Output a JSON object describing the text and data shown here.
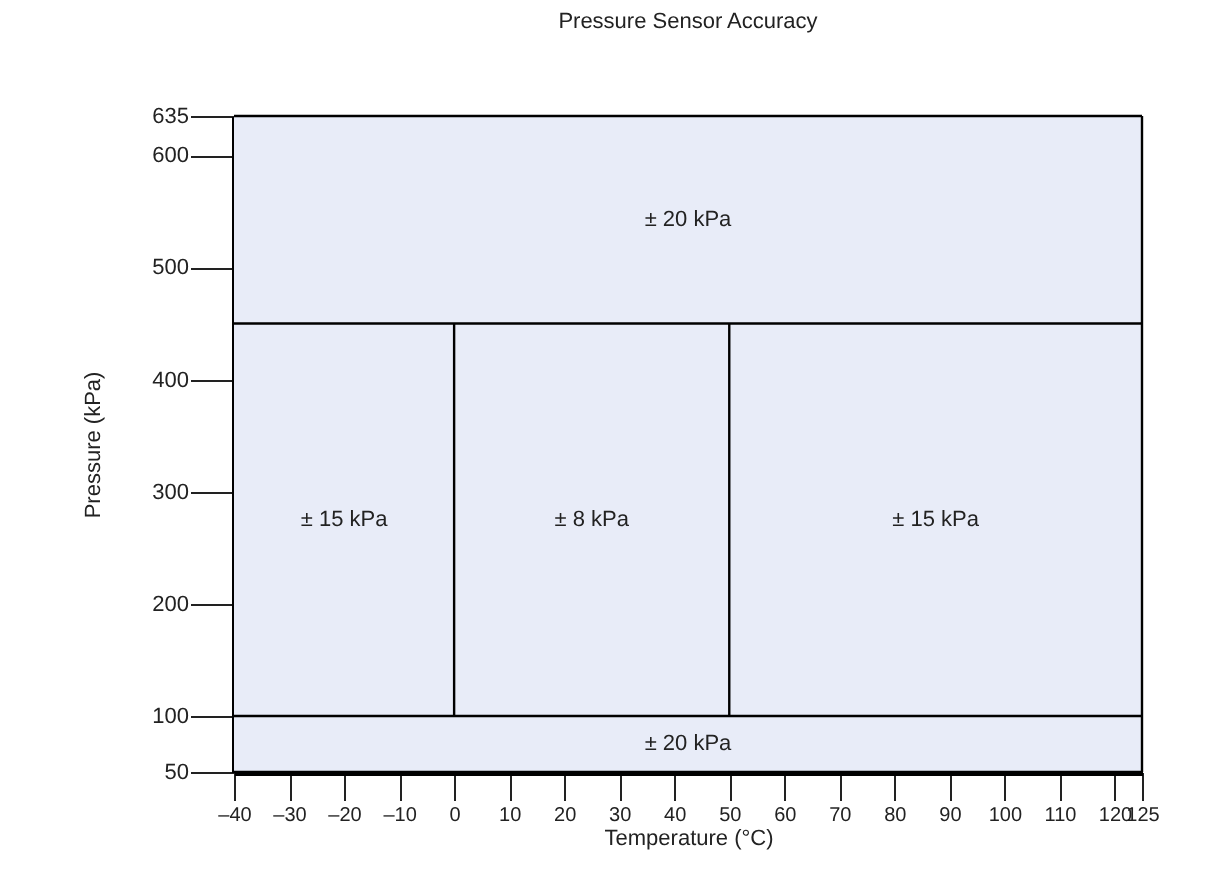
{
  "chart_data": {
    "type": "line",
    "title": "Pressure Sensor Accuracy",
    "xlabel": "Temperature (°C)",
    "ylabel": "Pressure (kPa)",
    "xlim": [
      -40,
      125
    ],
    "ylim": [
      50,
      635
    ],
    "xticks": [
      {
        "value": -40,
        "label": "–40"
      },
      {
        "value": -30,
        "label": "–30"
      },
      {
        "value": -20,
        "label": "–20"
      },
      {
        "value": -10,
        "label": "–10"
      },
      0,
      10,
      20,
      30,
      40,
      50,
      60,
      70,
      80,
      90,
      100,
      110,
      120,
      125
    ],
    "yticks": [
      50,
      100,
      200,
      300,
      400,
      500,
      600,
      635
    ],
    "marker": "none",
    "series": [
      {
        "color": "#000000",
        "x": [
          -40,
          125
        ],
        "values": [
          100,
          100
        ]
      },
      {
        "color": "#000000",
        "x": [
          -40,
          125
        ],
        "values": [
          450,
          450
        ]
      },
      {
        "color": "#000000",
        "x": [
          0,
          0
        ],
        "values": [
          100,
          450
        ]
      },
      {
        "color": "#000000",
        "x": [
          50,
          50
        ],
        "values": [
          100,
          450
        ]
      },
      {
        "color": "#000000",
        "x": [
          -40,
          125
        ],
        "values": [
          635,
          635
        ]
      },
      {
        "color": "#000000",
        "x": [
          -40,
          125
        ],
        "values": [
          50,
          50
        ]
      },
      {
        "color": "#000000",
        "x": [
          125,
          125
        ],
        "values": [
          50,
          635
        ]
      }
    ],
    "bands": [
      {
        "axis": "x",
        "from": -40,
        "to": 0,
        "label": "± 15 kPa",
        "color": "#e8ecf8"
      },
      {
        "axis": "x",
        "from": 0,
        "to": 50,
        "label": "± 8 kPa",
        "color": "#e8ecf8"
      },
      {
        "axis": "x",
        "from": 50,
        "to": 125,
        "label": "± 15 kPa",
        "color": "#e8ecf8"
      },
      {
        "axis": "y",
        "from": 450,
        "to": 635,
        "label": "± 20 kPa",
        "color": "#e8ecf8"
      },
      {
        "axis": "y",
        "from": 50,
        "to": 100,
        "label": "± 20 kPa",
        "color": "#e8ecf8"
      }
    ]
  }
}
